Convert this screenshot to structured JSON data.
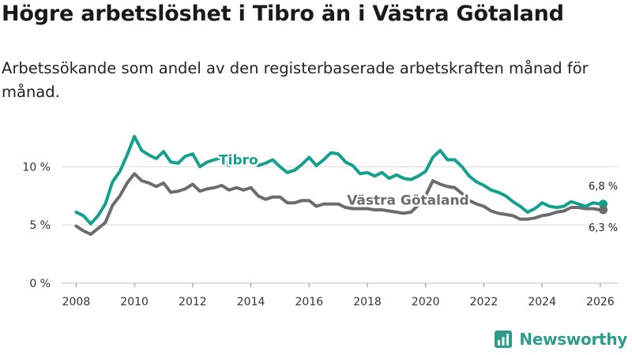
{
  "title": "Högre arbetslöshet i Tibro än i Västra Götaland",
  "subtitle": "Arbetssökande som andel av den registerbaserade arbetskraften månad för månad.",
  "brand": {
    "name": "Newsworthy",
    "color": "#2e9c8c"
  },
  "chart_data": {
    "type": "line",
    "ylim": [
      0,
      12.8
    ],
    "xlim": [
      2007.5,
      2026.6
    ],
    "y_ticks": [
      0,
      5,
      10
    ],
    "y_tick_labels": [
      "0 %",
      "5 %",
      "10 %"
    ],
    "x_ticks": [
      2008,
      2010,
      2012,
      2014,
      2016,
      2018,
      2020,
      2022,
      2024,
      2026
    ],
    "x_tick_labels": [
      "2008",
      "2010",
      "2012",
      "2014",
      "2016",
      "2018",
      "2020",
      "2022",
      "2024",
      "2026"
    ],
    "grid": true,
    "legend": "inline",
    "series": [
      {
        "name": "Tibro",
        "color": "#13a08f",
        "end_label": "6,8 %",
        "end_value": 6.8,
        "x": [
          2008.0,
          2008.25,
          2008.5,
          2008.75,
          2009.0,
          2009.25,
          2009.5,
          2009.75,
          2010.0,
          2010.25,
          2010.5,
          2010.75,
          2011.0,
          2011.25,
          2011.5,
          2011.75,
          2012.0,
          2012.25,
          2012.5,
          2012.75,
          2013.0,
          2013.25,
          2013.5,
          2013.75,
          2014.0,
          2014.25,
          2014.5,
          2014.75,
          2015.0,
          2015.25,
          2015.5,
          2015.75,
          2016.0,
          2016.25,
          2016.5,
          2016.75,
          2017.0,
          2017.25,
          2017.5,
          2017.75,
          2018.0,
          2018.25,
          2018.5,
          2018.75,
          2019.0,
          2019.25,
          2019.5,
          2019.75,
          2020.0,
          2020.25,
          2020.5,
          2020.75,
          2021.0,
          2021.25,
          2021.5,
          2021.75,
          2022.0,
          2022.25,
          2022.5,
          2022.75,
          2023.0,
          2023.25,
          2023.5,
          2023.75,
          2024.0,
          2024.25,
          2024.5,
          2024.75,
          2025.0,
          2025.25,
          2025.5,
          2025.75,
          2026.0,
          2026.1
        ],
        "values": [
          6.1,
          5.8,
          5.1,
          5.8,
          6.8,
          8.7,
          9.6,
          11.0,
          12.6,
          11.4,
          11.0,
          10.7,
          11.3,
          10.4,
          10.3,
          10.9,
          11.1,
          10.0,
          10.4,
          10.6,
          10.8,
          10.1,
          10.5,
          10.3,
          10.6,
          10.1,
          10.3,
          10.6,
          10.0,
          9.5,
          9.7,
          10.2,
          10.8,
          10.1,
          10.6,
          11.2,
          11.1,
          10.4,
          10.1,
          9.4,
          9.5,
          9.2,
          9.5,
          9.0,
          9.3,
          9.0,
          8.9,
          9.2,
          9.6,
          10.8,
          11.4,
          10.6,
          10.6,
          10.0,
          9.2,
          8.7,
          8.4,
          8.0,
          7.8,
          7.5,
          7.0,
          6.6,
          6.1,
          6.4,
          6.9,
          6.6,
          6.5,
          6.6,
          7.0,
          6.8,
          6.6,
          6.9,
          6.8,
          6.8
        ]
      },
      {
        "name": "Västra Götaland",
        "color": "#6b6b70",
        "end_label": "6,3 %",
        "end_value": 6.3,
        "x": [
          2008.0,
          2008.25,
          2008.5,
          2008.75,
          2009.0,
          2009.25,
          2009.5,
          2009.75,
          2010.0,
          2010.25,
          2010.5,
          2010.75,
          2011.0,
          2011.25,
          2011.5,
          2011.75,
          2012.0,
          2012.25,
          2012.5,
          2012.75,
          2013.0,
          2013.25,
          2013.5,
          2013.75,
          2014.0,
          2014.25,
          2014.5,
          2014.75,
          2015.0,
          2015.25,
          2015.5,
          2015.75,
          2016.0,
          2016.25,
          2016.5,
          2016.75,
          2017.0,
          2017.25,
          2017.5,
          2017.75,
          2018.0,
          2018.25,
          2018.5,
          2018.75,
          2019.0,
          2019.25,
          2019.5,
          2019.75,
          2020.0,
          2020.25,
          2020.5,
          2020.75,
          2021.0,
          2021.25,
          2021.5,
          2021.75,
          2022.0,
          2022.25,
          2022.5,
          2022.75,
          2023.0,
          2023.25,
          2023.5,
          2023.75,
          2024.0,
          2024.25,
          2024.5,
          2024.75,
          2025.0,
          2025.25,
          2025.5,
          2025.75,
          2026.0,
          2026.1
        ],
        "values": [
          4.9,
          4.5,
          4.2,
          4.7,
          5.2,
          6.7,
          7.5,
          8.6,
          9.4,
          8.8,
          8.6,
          8.3,
          8.6,
          7.8,
          7.9,
          8.1,
          8.5,
          7.9,
          8.1,
          8.2,
          8.4,
          8.0,
          8.2,
          8.0,
          8.2,
          7.5,
          7.2,
          7.4,
          7.4,
          6.9,
          6.9,
          7.1,
          7.1,
          6.6,
          6.8,
          6.8,
          6.8,
          6.5,
          6.4,
          6.4,
          6.4,
          6.3,
          6.3,
          6.2,
          6.1,
          6.0,
          6.1,
          6.7,
          7.5,
          8.8,
          8.5,
          8.3,
          8.2,
          7.7,
          7.1,
          6.8,
          6.6,
          6.2,
          6.0,
          5.9,
          5.8,
          5.5,
          5.5,
          5.6,
          5.8,
          5.9,
          6.1,
          6.2,
          6.5,
          6.5,
          6.4,
          6.4,
          6.3,
          6.3
        ]
      }
    ]
  }
}
